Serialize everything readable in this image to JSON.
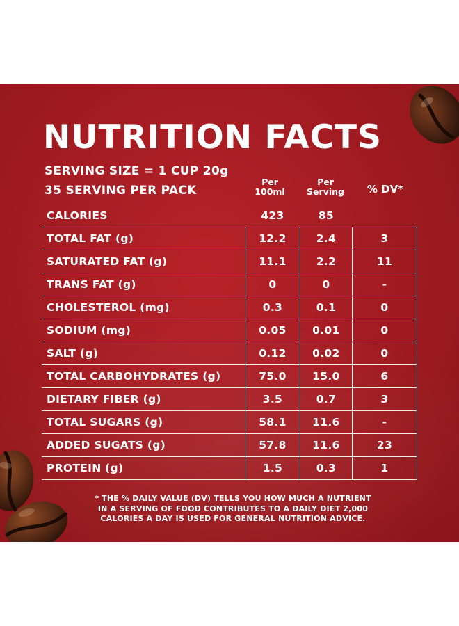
{
  "title": "NUTRITION FACTS",
  "serving": {
    "size": "SERVING SIZE = 1 CUP 20g",
    "per_pack": "35 SERVING PER PACK"
  },
  "columns": {
    "per_100ml_line1": "Per",
    "per_100ml_line2": "100ml",
    "per_serving_line1": "Per",
    "per_serving_line2": "Serving",
    "dv": "% DV*"
  },
  "calories": {
    "label": "CALORIES",
    "per_100ml": "423",
    "per_serving": "85",
    "dv": ""
  },
  "rows": [
    {
      "label": "TOTAL FAT (g)",
      "per_100ml": "12.2",
      "per_serving": "2.4",
      "dv": "3"
    },
    {
      "label": "SATURATED FAT (g)",
      "per_100ml": "11.1",
      "per_serving": "2.2",
      "dv": "11"
    },
    {
      "label": "TRANS FAT (g)",
      "per_100ml": "0",
      "per_serving": "0",
      "dv": "-"
    },
    {
      "label": "CHOLESTEROL (mg)",
      "per_100ml": "0.3",
      "per_serving": "0.1",
      "dv": "0"
    },
    {
      "label": "SODIUM (mg)",
      "per_100ml": "0.05",
      "per_serving": "0.01",
      "dv": "0"
    },
    {
      "label": "SALT (g)",
      "per_100ml": "0.12",
      "per_serving": "0.02",
      "dv": "0"
    },
    {
      "label": "TOTAL CARBOHYDRATES (g)",
      "per_100ml": "75.0",
      "per_serving": "15.0",
      "dv": "6"
    },
    {
      "label": "DIETARY FIBER (g)",
      "per_100ml": "3.5",
      "per_serving": "0.7",
      "dv": "3"
    },
    {
      "label": "TOTAL SUGARS (g)",
      "per_100ml": "58.1",
      "per_serving": "11.6",
      "dv": "-"
    },
    {
      "label": "ADDED SUGATS (g)",
      "per_100ml": "57.8",
      "per_serving": "11.6",
      "dv": "23"
    },
    {
      "label": "PROTEIN (g)",
      "per_100ml": "1.5",
      "per_serving": "0.3",
      "dv": "1"
    }
  ],
  "footnote": {
    "line1": "* THE % DAILY VALUE (DV) TELLS YOU HOW MUCH A NUTRIENT",
    "line2": "IN A SERVING OF FOOD CONTRIBUTES TO A DAILY DIET 2,000",
    "line3": "CALORIES A DAY IS USED FOR GENERAL NUTRITION ADVICE."
  },
  "colors": {
    "background": "#a41c22",
    "text": "#ffffff",
    "bean": "#4a2312"
  },
  "icons": [
    "coffee-bean-icon"
  ]
}
